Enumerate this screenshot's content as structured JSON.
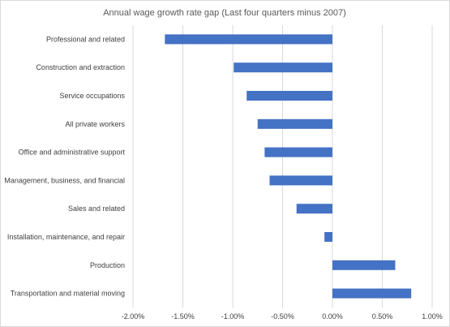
{
  "chart_data": {
    "type": "bar",
    "orientation": "horizontal",
    "title": "Annual wage growth rate gap (Last four quarters minus 2007)",
    "xlabel": "",
    "ylabel": "",
    "categories": [
      "Professional and related",
      "Construction and extraction",
      "Service occupations",
      "All private workers",
      "Office and administrative support",
      "Management, business, and financial",
      "Sales and related",
      "Installation, maintenance, and repair",
      "Production",
      "Transportation and material moving"
    ],
    "values": [
      -1.68,
      -0.99,
      -0.86,
      -0.75,
      -0.68,
      -0.63,
      -0.36,
      -0.08,
      0.63,
      0.79
    ],
    "xlim": [
      -2.0,
      1.0
    ],
    "xticks": [
      -2.0,
      -1.5,
      -1.0,
      -0.5,
      0.0,
      0.5,
      1.0
    ],
    "xtick_labels": [
      "-2.00%",
      "-1.50%",
      "-1.00%",
      "-0.50%",
      "0.00%",
      "0.50%",
      "1.00%"
    ],
    "grid": true,
    "legend": "none",
    "colors": {
      "bar": "#4472C4",
      "grid": "#d9d9d9",
      "text": "#404040",
      "title": "#595959"
    }
  }
}
